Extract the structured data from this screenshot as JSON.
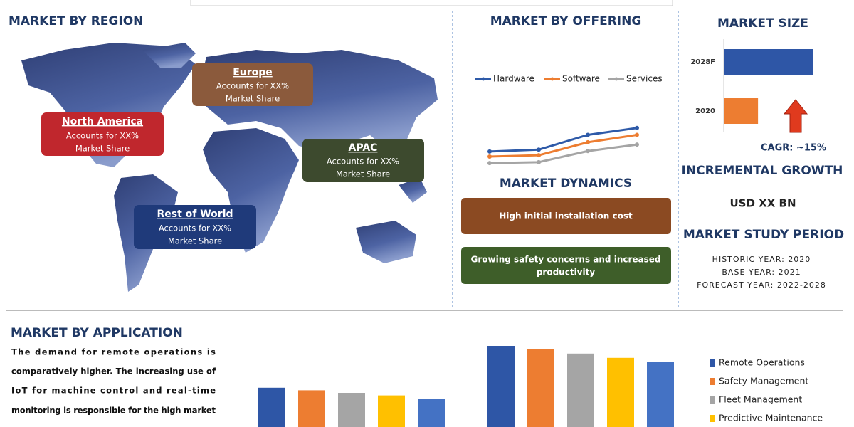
{
  "region": {
    "title": "MARKET BY REGION",
    "boxes": [
      {
        "name": "Europe",
        "line1": "Accounts for XX%",
        "line2": "Market Share"
      },
      {
        "name": "North America",
        "line1": "Accounts for XX%",
        "line2": "Market Share"
      },
      {
        "name": "APAC",
        "line1": "Accounts for XX%",
        "line2": "Market Share"
      },
      {
        "name": "Rest of World",
        "line1": "Accounts for XX%",
        "line2": "Market Share"
      }
    ]
  },
  "offering": {
    "title": "MARKET BY OFFERING",
    "chart_data": {
      "type": "line",
      "x": [
        1,
        2,
        3,
        4
      ],
      "xlim": [
        1,
        4
      ],
      "ylim": [
        0,
        100
      ],
      "series": [
        {
          "name": "Hardware",
          "color": "#2e5aa8",
          "values": [
            34,
            38,
            70,
            85
          ]
        },
        {
          "name": "Software",
          "color": "#ed7d31",
          "values": [
            23,
            26,
            54,
            70
          ]
        },
        {
          "name": "Services",
          "color": "#a5a5a5",
          "values": [
            9,
            11,
            35,
            49
          ]
        }
      ]
    }
  },
  "dynamics": {
    "title": "MARKET DYNAMICS",
    "items": [
      {
        "text": "High initial installation cost",
        "color": "#8b4a22"
      },
      {
        "text": "Growing safety concerns and increased",
        "text2": "productivity",
        "color": "#3e5e29"
      }
    ]
  },
  "size": {
    "title": "MARKET SIZE",
    "chart_data": {
      "type": "hbar",
      "categories": [
        "2028F",
        "2020"
      ],
      "values": [
        100,
        38
      ],
      "colors": [
        "#2e56a6",
        "#ed7d31"
      ],
      "xlim": [
        0,
        100
      ]
    },
    "cagr": "CAGR:  ~15%",
    "growth_title": "INCREMENTAL GROWTH",
    "growth_value": "USD XX BN",
    "period_title": "MARKET STUDY PERIOD",
    "periods": [
      "HISTORIC YEAR: 2020",
      "BASE YEAR: 2021",
      "FORECAST YEAR: 2022-2028"
    ]
  },
  "application": {
    "title": "MARKET BY APPLICATION",
    "paragraph": [
      "The demand for remote operations is",
      "comparatively higher. The increasing use of",
      "IoT for machine control and real-time",
      "monitoring is responsible for the high market"
    ],
    "chart_data": {
      "type": "bar",
      "categories": [
        null,
        null
      ],
      "ylim": [
        0,
        100
      ],
      "series": [
        {
          "name": "Remote Operations",
          "color": "#2e56a6",
          "values": [
            46,
            95
          ]
        },
        {
          "name": "Safety Management",
          "color": "#ed7d31",
          "values": [
            43,
            91
          ]
        },
        {
          "name": "Fleet Management",
          "color": "#a5a5a5",
          "values": [
            40,
            86
          ]
        },
        {
          "name": "Predictive Maintenance",
          "color": "#ffc000",
          "values": [
            37,
            81
          ]
        },
        {
          "color": "#4472c4",
          "values": [
            33,
            76
          ]
        }
      ]
    }
  }
}
